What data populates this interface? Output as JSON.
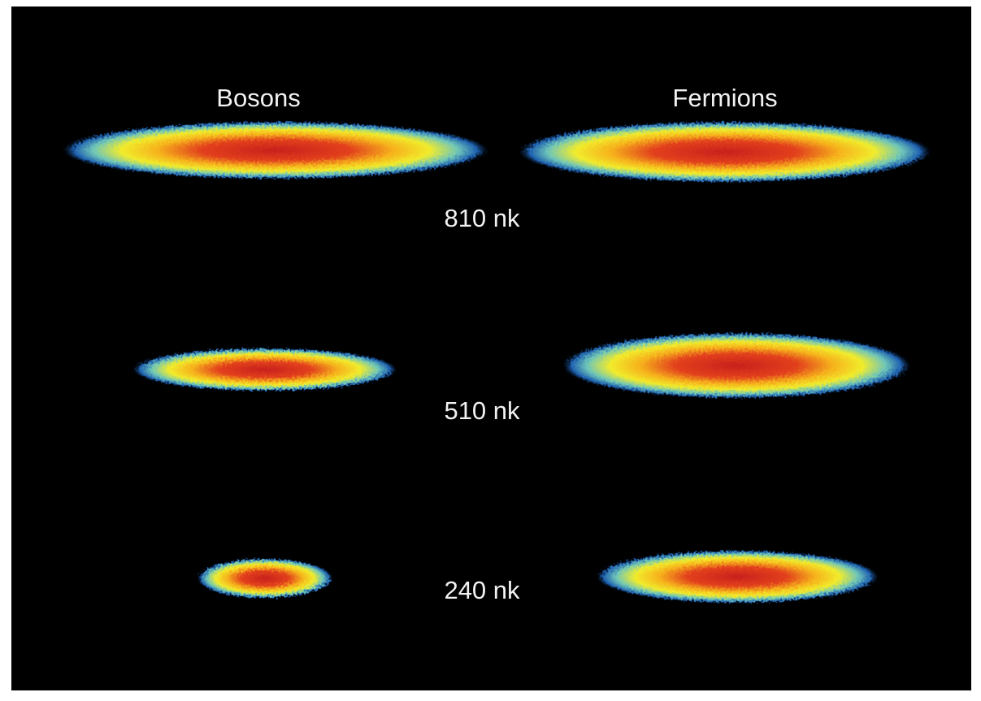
{
  "column_labels": [
    "Bosons",
    "Fermions"
  ],
  "temperatures": [
    "810 nk",
    "510 nk",
    "240 nk"
  ]
}
